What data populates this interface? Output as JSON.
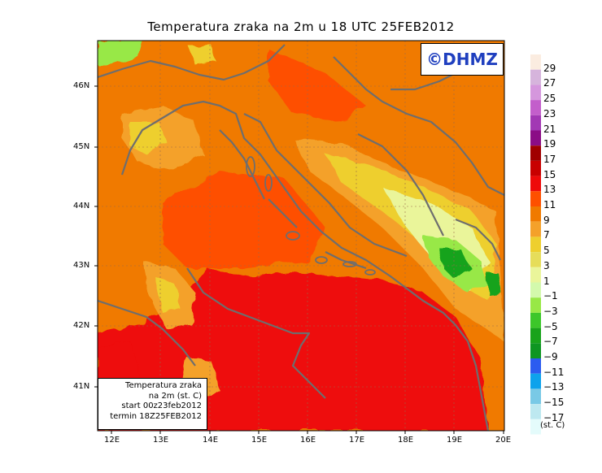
{
  "title": "Temperatura zraka na 2m u 18 UTC 25FEB2012",
  "logo": "©DHMZ",
  "info": {
    "line1": "Temperatura zraka",
    "line2": "na 2m (st. C)",
    "line3": "start 00z23feb2012",
    "line4": "termin 18Z25FEB2012"
  },
  "lat_labels": [
    "46N",
    "45N",
    "44N",
    "43N",
    "42N",
    "41N"
  ],
  "lon_labels": [
    "12E",
    "13E",
    "14E",
    "15E",
    "16E",
    "17E",
    "18E",
    "19E",
    "20E"
  ],
  "legend": {
    "labels": [
      "29",
      "27",
      "25",
      "23",
      "21",
      "19",
      "17",
      "15",
      "13",
      "11",
      "9",
      "7",
      "5",
      "3",
      "1",
      "−1",
      "−3",
      "−5",
      "−7",
      "−9",
      "−11",
      "−13",
      "−15",
      "−17"
    ],
    "colors": [
      "#fbece0",
      "#d6b4dc",
      "#d597dd",
      "#c35ecb",
      "#a238b4",
      "#8b0c86",
      "#a00000",
      "#c80000",
      "#ee0a0a",
      "#fe5000",
      "#f07a00",
      "#f4a12a",
      "#eecf2e",
      "#e6dd5a",
      "#eaf59a",
      "#d3f9ac",
      "#98e846",
      "#3cc72a",
      "#19a31b",
      "#0e9622",
      "#2b5cf0",
      "#0da2ec",
      "#79c9e6",
      "#bde8f0",
      "#e4fbfb"
    ],
    "units": "(st. C)"
  }
}
